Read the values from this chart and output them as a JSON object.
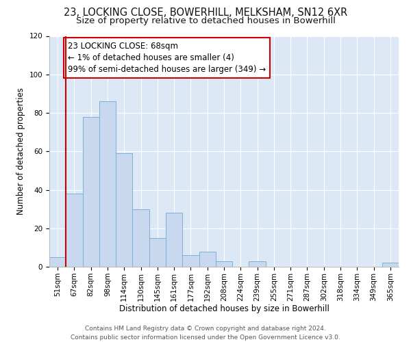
{
  "title": "23, LOCKING CLOSE, BOWERHILL, MELKSHAM, SN12 6XR",
  "subtitle": "Size of property relative to detached houses in Bowerhill",
  "xlabel": "Distribution of detached houses by size in Bowerhill",
  "ylabel": "Number of detached properties",
  "bin_labels": [
    "51sqm",
    "67sqm",
    "82sqm",
    "98sqm",
    "114sqm",
    "130sqm",
    "145sqm",
    "161sqm",
    "177sqm",
    "192sqm",
    "208sqm",
    "224sqm",
    "239sqm",
    "255sqm",
    "271sqm",
    "287sqm",
    "302sqm",
    "318sqm",
    "334sqm",
    "349sqm",
    "365sqm"
  ],
  "bar_values": [
    5,
    38,
    78,
    86,
    59,
    30,
    15,
    28,
    6,
    8,
    3,
    0,
    3,
    0,
    0,
    0,
    0,
    0,
    0,
    0,
    2
  ],
  "bar_color": "#c8d8ee",
  "bar_edge_color": "#7bafd4",
  "vline_color": "#cc0000",
  "annotation_text": "23 LOCKING CLOSE: 68sqm\n← 1% of detached houses are smaller (4)\n99% of semi-detached houses are larger (349) →",
  "annotation_box_color": "#ffffff",
  "annotation_box_edge_color": "#cc0000",
  "ylim": [
    0,
    120
  ],
  "yticks": [
    0,
    20,
    40,
    60,
    80,
    100,
    120
  ],
  "footer_line1": "Contains HM Land Registry data © Crown copyright and database right 2024.",
  "footer_line2": "Contains public sector information licensed under the Open Government Licence v3.0.",
  "fig_bg_color": "#ffffff",
  "plot_bg_color": "#dce8f5",
  "title_fontsize": 10.5,
  "subtitle_fontsize": 9.5,
  "axis_label_fontsize": 8.5,
  "tick_fontsize": 7.5,
  "annotation_fontsize": 8.5,
  "footer_fontsize": 6.5
}
